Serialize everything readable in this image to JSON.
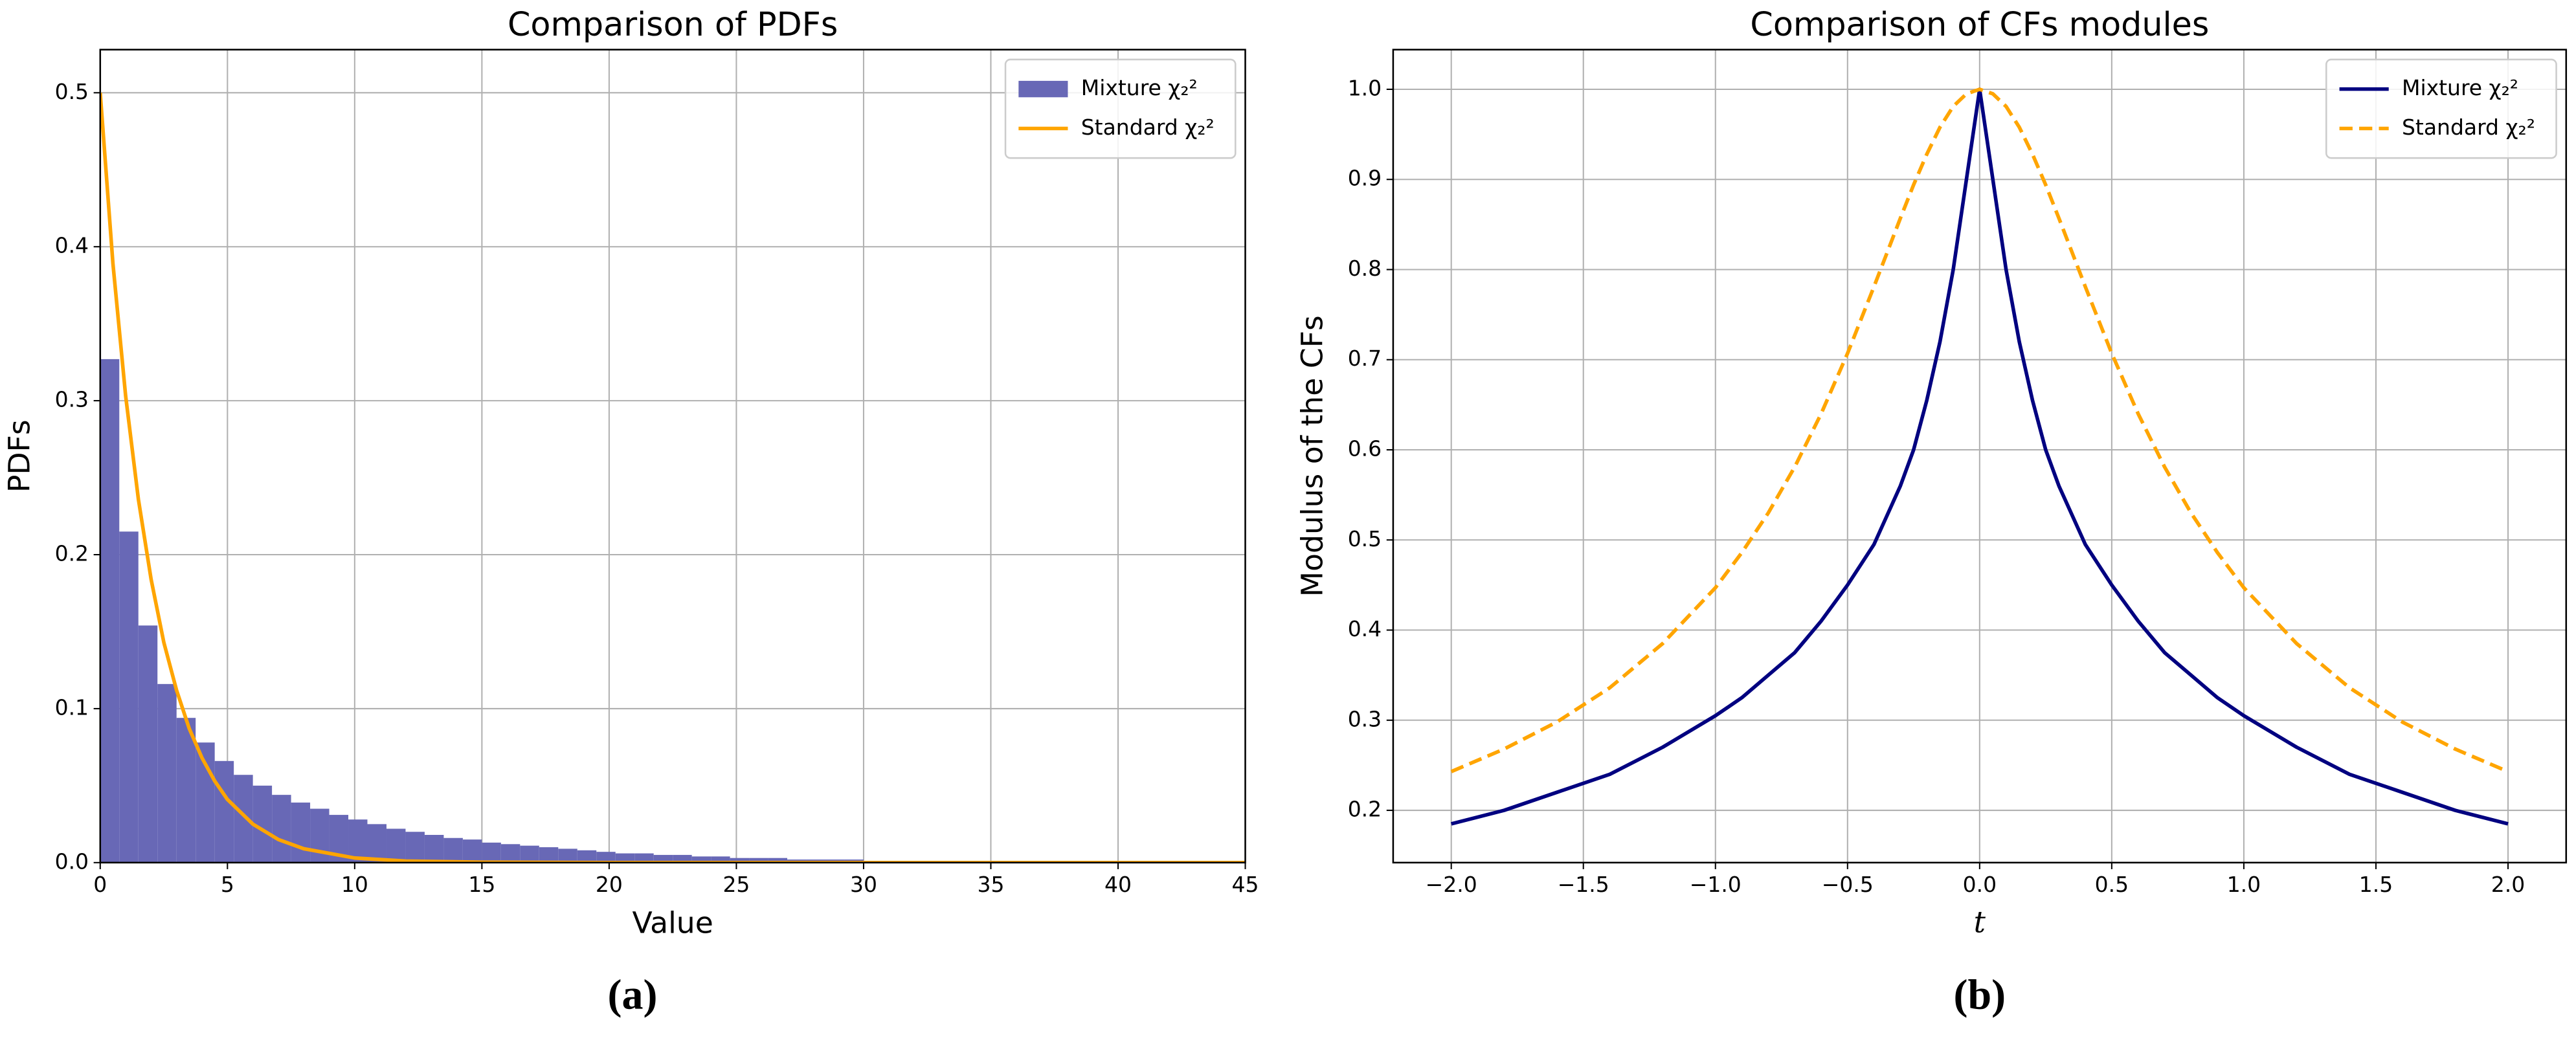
{
  "chart_data": [
    {
      "type": "histogram",
      "title": "Comparison of PDFs",
      "xlabel": "Value",
      "ylabel": "PDFs",
      "caption": "(a)",
      "xlim": [
        0,
        45
      ],
      "ylim": [
        0,
        0.528
      ],
      "xticks": [
        0,
        5,
        10,
        15,
        20,
        25,
        30,
        35,
        40,
        45
      ],
      "yticks": [
        {
          "value": 0,
          "label": "0.0"
        },
        0.1,
        0.2,
        0.3,
        0.4,
        0.5
      ],
      "grid": true,
      "legend": "upper right",
      "bins": [
        0,
        0.75,
        1.5,
        2.25,
        3,
        3.75,
        4.5,
        5.25,
        6,
        6.75,
        7.5,
        8.25,
        9,
        9.75,
        10.5,
        11.25,
        12,
        12.75,
        13.5,
        14.25,
        15,
        15.75,
        16.5,
        17.25,
        18,
        18.75,
        19.5,
        20.25,
        21,
        21.75,
        22.5,
        23.25,
        24,
        24.75,
        25.5,
        26.25,
        27,
        27.75,
        28.5,
        29.25,
        30,
        30.75,
        31.5,
        32.25,
        33,
        33.75,
        34.5,
        35.25,
        36,
        36.75,
        37.5,
        38.25,
        39,
        39.75,
        40.5,
        41.25,
        42,
        42.75,
        43.5,
        44.25,
        45
      ],
      "series": [
        {
          "type": "histogram",
          "name": "Mixture χ₂²",
          "color": "#6868b6",
          "values": [
            0.327,
            0.215,
            0.154,
            0.116,
            0.094,
            0.078,
            0.066,
            0.057,
            0.05,
            0.044,
            0.039,
            0.035,
            0.031,
            0.028,
            0.025,
            0.022,
            0.02,
            0.018,
            0.016,
            0.015,
            0.013,
            0.012,
            0.011,
            0.01,
            0.009,
            0.008,
            0.007,
            0.006,
            0.006,
            0.005,
            0.005,
            0.004,
            0.004,
            0.003,
            0.003,
            0.003,
            0.002,
            0.002,
            0.002,
            0.002,
            0.001,
            0.001,
            0.001,
            0.001,
            0.001,
            0.001,
            0.001,
            0.001,
            0,
            0,
            0,
            0,
            0,
            0,
            0,
            0,
            0,
            0,
            0,
            0
          ]
        },
        {
          "type": "line",
          "name": "Standard χ₂²",
          "color": "#ffa500",
          "linestyle": "solid",
          "x": [
            0,
            0.5,
            1,
            1.5,
            2,
            2.5,
            3,
            3.5,
            4,
            4.5,
            5,
            6,
            7,
            8,
            9,
            10,
            12,
            15,
            20,
            30,
            45
          ],
          "values": [
            0.5,
            0.389,
            0.303,
            0.236,
            0.184,
            0.143,
            0.112,
            0.087,
            0.068,
            0.053,
            0.041,
            0.025,
            0.015,
            0.009,
            0.006,
            0.003,
            0.001,
            0.0003,
            0,
            0,
            0
          ]
        }
      ]
    },
    {
      "type": "line",
      "title": "Comparison of CFs modules",
      "xlabel": "t",
      "ylabel": "Modulus of the CFs",
      "caption": "(b)",
      "xlim": [
        -2.22,
        2.22
      ],
      "ylim": [
        0.142,
        1.044
      ],
      "xticks": [
        {
          "value": -2,
          "label": "−2.0"
        },
        {
          "value": -1.5,
          "label": "−1.5"
        },
        {
          "value": -1,
          "label": "−1.0"
        },
        {
          "value": -0.5,
          "label": "−0.5"
        },
        {
          "value": 0,
          "label": "0.0"
        },
        0.5,
        {
          "value": 1,
          "label": "1.0"
        },
        1.5,
        {
          "value": 2,
          "label": "2.0"
        }
      ],
      "yticks": [
        0.2,
        0.3,
        0.4,
        0.5,
        0.6,
        0.7,
        0.8,
        0.9,
        {
          "value": 1,
          "label": "1.0"
        }
      ],
      "grid": true,
      "legend": "upper right",
      "x": [
        -2,
        -1.8,
        -1.6,
        -1.4,
        -1.2,
        -1,
        -0.9,
        -0.8,
        -0.7,
        -0.6,
        -0.5,
        -0.4,
        -0.3,
        -0.25,
        -0.2,
        -0.15,
        -0.1,
        -0.05,
        0,
        0.05,
        0.1,
        0.15,
        0.2,
        0.25,
        0.3,
        0.4,
        0.5,
        0.6,
        0.7,
        0.8,
        0.9,
        1,
        1.2,
        1.4,
        1.6,
        1.8,
        2
      ],
      "series": [
        {
          "type": "line",
          "name": "Mixture χ₂²",
          "color": "#000080",
          "linestyle": "solid",
          "values": [
            0.185,
            0.2,
            0.22,
            0.24,
            0.27,
            0.305,
            0.325,
            0.35,
            0.375,
            0.41,
            0.45,
            0.495,
            0.56,
            0.6,
            0.655,
            0.72,
            0.8,
            0.9,
            1,
            0.9,
            0.8,
            0.72,
            0.655,
            0.6,
            0.56,
            0.495,
            0.45,
            0.41,
            0.375,
            0.35,
            0.325,
            0.305,
            0.27,
            0.24,
            0.22,
            0.2,
            0.185
          ]
        },
        {
          "type": "line",
          "name": "Standard χ₂²",
          "color": "#ffa500",
          "linestyle": "dashed",
          "values": [
            0.243,
            0.268,
            0.298,
            0.336,
            0.385,
            0.447,
            0.486,
            0.53,
            0.581,
            0.64,
            0.707,
            0.781,
            0.857,
            0.894,
            0.928,
            0.958,
            0.981,
            0.995,
            1,
            0.995,
            0.981,
            0.958,
            0.928,
            0.894,
            0.857,
            0.781,
            0.707,
            0.64,
            0.581,
            0.53,
            0.486,
            0.447,
            0.385,
            0.336,
            0.298,
            0.268,
            0.243
          ]
        }
      ]
    }
  ]
}
